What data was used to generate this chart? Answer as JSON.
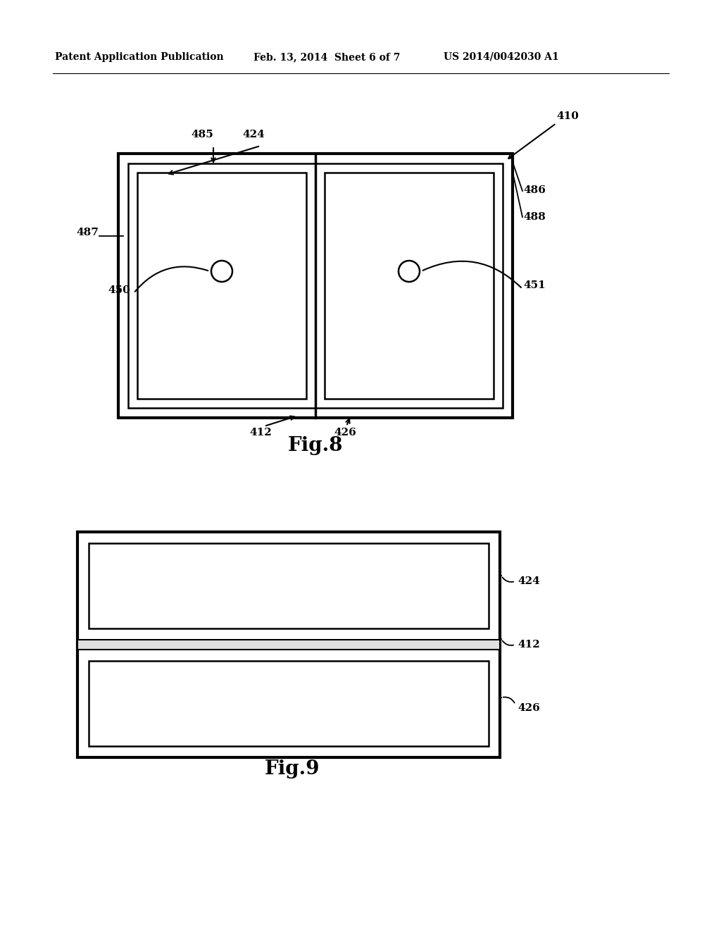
{
  "background_color": "#ffffff",
  "header_left": "Patent Application Publication",
  "header_mid": "Feb. 13, 2014  Sheet 6 of 7",
  "header_right": "US 2014/0042030 A1",
  "fig8_title": "Fig.8",
  "fig9_title": "Fig.9",
  "line_color": "#000000"
}
